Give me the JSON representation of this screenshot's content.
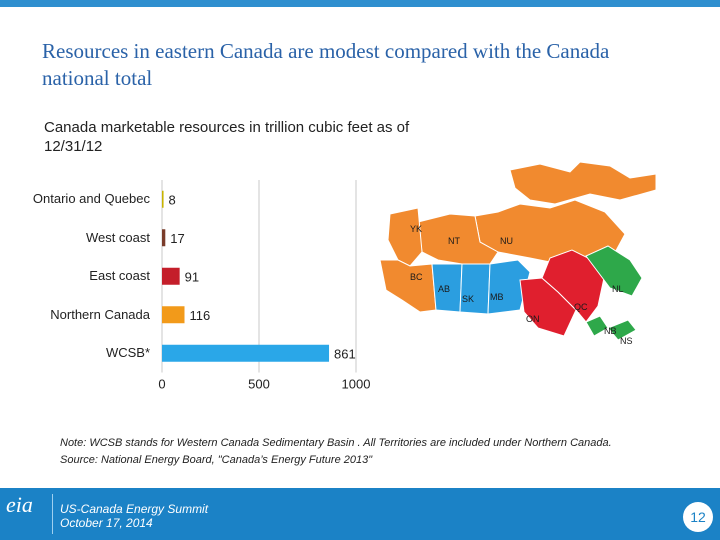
{
  "slide": {
    "title": "Resources in eastern Canada are modest compared with the Canada national total",
    "page_number": "12"
  },
  "chart_data": {
    "type": "bar",
    "orientation": "horizontal",
    "title": "Canada marketable resources in trillion cubic feet as of 12/31/12",
    "categories": [
      "Ontario and Quebec",
      "West coast",
      "East coast",
      "Northern Canada",
      "WCSB*"
    ],
    "values": [
      8,
      17,
      91,
      116,
      861
    ],
    "data_labels": [
      "8",
      "17",
      "91",
      "116",
      "861"
    ],
    "colors": [
      "#c8b400",
      "#7a3c2a",
      "#c41e2a",
      "#f29a1a",
      "#2aa7e8"
    ],
    "xlim": [
      0,
      1000
    ],
    "xticks": [
      0,
      500,
      1000
    ],
    "xtick_labels": [
      "0",
      "500",
      "1000"
    ],
    "grid": true
  },
  "map": {
    "regions": [
      {
        "label": "YK",
        "color": "#f18a2f"
      },
      {
        "label": "NT",
        "color": "#f18a2f"
      },
      {
        "label": "NU",
        "color": "#f18a2f"
      },
      {
        "label": "BC",
        "color": "#f18a2f"
      },
      {
        "label": "AB",
        "color": "#2b9ee0"
      },
      {
        "label": "SK",
        "color": "#2b9ee0"
      },
      {
        "label": "MB",
        "color": "#2b9ee0"
      },
      {
        "label": "ON",
        "color": "#e01f2e"
      },
      {
        "label": "QC",
        "color": "#e01f2e"
      },
      {
        "label": "NL",
        "color": "#2ea84a"
      },
      {
        "label": "NB",
        "color": "#2ea84a"
      },
      {
        "label": "NS",
        "color": "#2ea84a"
      }
    ]
  },
  "note": {
    "line1": "Note: WCSB stands for Western Canada Sedimentary Basin .  All Territories are included under Northern Canada.",
    "line2": "Source: National Energy Board, \"Canada’s Energy Future 2013\""
  },
  "footer": {
    "brand": "eia",
    "event_name": "US-Canada Energy Summit",
    "event_date": "October 17, 2014"
  }
}
